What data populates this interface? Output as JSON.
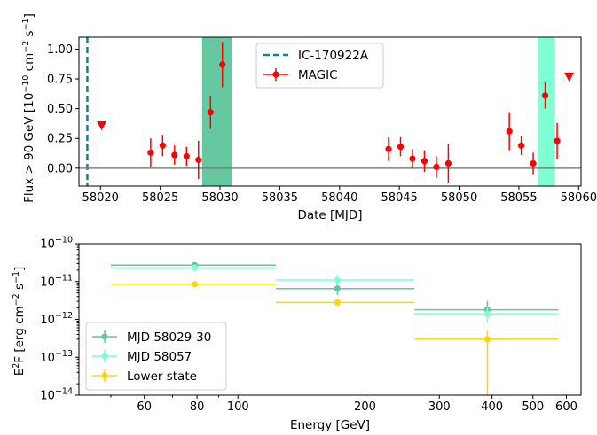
{
  "chart_data": [
    {
      "type": "scatter",
      "xlabel": "Date [MJD]",
      "ylabel": "Flux > 90 GeV [10$^{-10}$ cm$^{-2}$ s$^{-1}$]",
      "ylabel_parts": [
        "Flux > 90 GeV [10",
        "−10",
        " cm",
        "−2",
        " s",
        "−1",
        "]"
      ],
      "xlim": [
        58018.2,
        58060.2
      ],
      "ylim": [
        -0.15,
        1.1
      ],
      "xticks": [
        58020,
        58025,
        58030,
        58035,
        58040,
        58045,
        58050,
        58055,
        58060
      ],
      "xtick_labels": [
        "58020",
        "58025",
        "58030",
        "58035",
        "58040",
        "58045",
        "58050",
        "58055",
        "58060"
      ],
      "yticks": [
        0.0,
        0.25,
        0.5,
        0.75,
        1.0
      ],
      "ytick_labels": [
        "0.00",
        "0.25",
        "0.50",
        "0.75",
        "1.00"
      ],
      "legend_position": "top-center",
      "shaded_regions": [
        {
          "x0": 58028.5,
          "x1": 58031.0,
          "color": "#66c8a0"
        },
        {
          "x0": 58056.6,
          "x1": 58058.0,
          "color": "#7fffd4"
        }
      ],
      "reference_lines": [
        {
          "name": "IC-170922A",
          "x": 58018.9,
          "style": "dashed",
          "color": "#008b8b"
        },
        {
          "y": 0.0,
          "style": "solid",
          "color": "#808080"
        }
      ],
      "series": [
        {
          "name": "MAGIC",
          "color": "#ff0000",
          "points": [
            {
              "x": 58024.2,
              "y": 0.13,
              "yerr": 0.12
            },
            {
              "x": 58025.2,
              "y": 0.19,
              "yerr": 0.09
            },
            {
              "x": 58026.2,
              "y": 0.11,
              "yerr": 0.08
            },
            {
              "x": 58027.2,
              "y": 0.1,
              "yerr": 0.08
            },
            {
              "x": 58028.2,
              "y": 0.07,
              "yerr": 0.16
            },
            {
              "x": 58029.2,
              "y": 0.47,
              "yerr": 0.14
            },
            {
              "x": 58030.2,
              "y": 0.87,
              "yerr": 0.19
            },
            {
              "x": 58044.1,
              "y": 0.16,
              "yerr": 0.1
            },
            {
              "x": 58045.1,
              "y": 0.18,
              "yerr": 0.08
            },
            {
              "x": 58046.1,
              "y": 0.08,
              "yerr": 0.08
            },
            {
              "x": 58047.1,
              "y": 0.06,
              "yerr": 0.09
            },
            {
              "x": 58048.1,
              "y": 0.01,
              "yerr": 0.09
            },
            {
              "x": 58049.1,
              "y": 0.04,
              "yerr": 0.16
            },
            {
              "x": 58054.2,
              "y": 0.31,
              "yerr": 0.16
            },
            {
              "x": 58055.2,
              "y": 0.19,
              "yerr": 0.08
            },
            {
              "x": 58056.2,
              "y": 0.04,
              "yerr": 0.09
            },
            {
              "x": 58057.2,
              "y": 0.61,
              "yerr": 0.11
            },
            {
              "x": 58058.2,
              "y": 0.23,
              "yerr": 0.15
            }
          ],
          "upper_limits": [
            {
              "x": 58020.1,
              "y": 0.36
            },
            {
              "x": 58059.2,
              "y": 0.77
            }
          ]
        }
      ],
      "legend": [
        {
          "name": "IC-170922A",
          "marker": "dashed-line",
          "color": "#008b8b"
        },
        {
          "name": "MAGIC",
          "marker": "point-errorbar",
          "color": "#ff0000"
        }
      ]
    },
    {
      "type": "scatter",
      "xscale": "log",
      "yscale": "log",
      "xlabel": "Energy [GeV]",
      "ylabel_parts": [
        "E",
        "2",
        "F [erg cm",
        "−2",
        " s",
        "−1",
        "]"
      ],
      "xlim": [
        42,
        650
      ],
      "ylim": [
        1e-14,
        1e-10
      ],
      "xticks": [
        60,
        80,
        100,
        200,
        300,
        400,
        500,
        600
      ],
      "xtick_labels": [
        "60",
        "80",
        "100",
        "200",
        "300",
        "400",
        "500",
        "600"
      ],
      "yticks": [
        1e-14,
        1e-13,
        1e-12,
        1e-11,
        1e-10
      ],
      "ytick_labels": [
        {
          "base": "10",
          "exp": "−14"
        },
        {
          "base": "10",
          "exp": "−13"
        },
        {
          "base": "10",
          "exp": "−12"
        },
        {
          "base": "10",
          "exp": "−11"
        },
        {
          "base": "10",
          "exp": "−10"
        }
      ],
      "legend_position": "lower-left",
      "series": [
        {
          "name": "MJD 58029-30",
          "color": "#66c2a5",
          "points": [
            {
              "x": 79,
              "xlo": 50,
              "xhi": 123,
              "y": 2.7e-11,
              "ylo": 2.3e-11,
              "yhi": 3.2e-11
            },
            {
              "x": 172,
              "xlo": 123,
              "xhi": 262,
              "y": 6.5e-12,
              "ylo": 4.5e-12,
              "yhi": 9e-12
            },
            {
              "x": 390,
              "xlo": 262,
              "xhi": 575,
              "y": 1.8e-12,
              "ylo": 1e-12,
              "yhi": 3.1e-12
            }
          ]
        },
        {
          "name": "MJD 58057",
          "color": "#7fffd4",
          "points": [
            {
              "x": 79,
              "xlo": 50,
              "xhi": 123,
              "y": 2.3e-11,
              "ylo": 1.9e-11,
              "yhi": 2.8e-11
            },
            {
              "x": 172,
              "xlo": 123,
              "xhi": 262,
              "y": 1.1e-11,
              "ylo": 8e-12,
              "yhi": 1.5e-11
            },
            {
              "x": 390,
              "xlo": 262,
              "xhi": 575,
              "y": 1.4e-12,
              "ylo": 8e-13,
              "yhi": 2.2e-12
            }
          ]
        },
        {
          "name": "Lower state",
          "color": "#ffd700",
          "points": [
            {
              "x": 79,
              "xlo": 50,
              "xhi": 123,
              "y": 8.5e-12,
              "ylo": 7.5e-12,
              "yhi": 9.5e-12
            },
            {
              "x": 172,
              "xlo": 123,
              "xhi": 262,
              "y": 2.8e-12,
              "ylo": 2.3e-12,
              "yhi": 3.3e-12
            },
            {
              "x": 390,
              "xlo": 262,
              "xhi": 575,
              "y": 3e-13,
              "ylo": 1e-14,
              "yhi": 5e-13
            }
          ]
        }
      ]
    }
  ]
}
